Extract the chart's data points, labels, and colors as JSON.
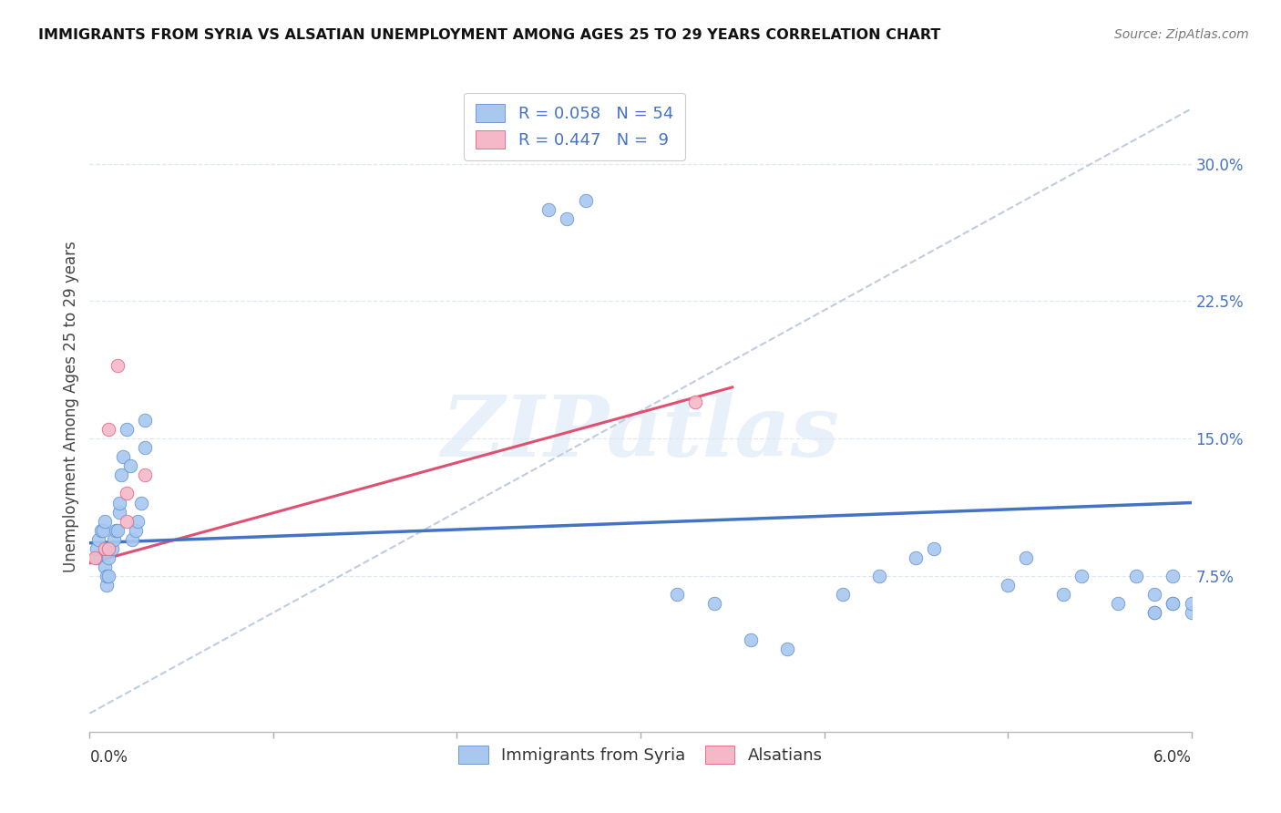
{
  "title": "IMMIGRANTS FROM SYRIA VS ALSATIAN UNEMPLOYMENT AMONG AGES 25 TO 29 YEARS CORRELATION CHART",
  "source": "Source: ZipAtlas.com",
  "ylabel": "Unemployment Among Ages 25 to 29 years",
  "right_yticks": [
    0.075,
    0.15,
    0.225,
    0.3
  ],
  "right_yticklabels": [
    "7.5%",
    "15.0%",
    "22.5%",
    "30.0%"
  ],
  "xlim": [
    0.0,
    0.06
  ],
  "ylim": [
    -0.01,
    0.345
  ],
  "legend_label1": "Immigrants from Syria",
  "legend_label2": "Alsatians",
  "scatter_blue_x": [
    0.0004,
    0.0004,
    0.0005,
    0.0006,
    0.0007,
    0.0008,
    0.0008,
    0.0009,
    0.0009,
    0.001,
    0.001,
    0.001,
    0.0012,
    0.0013,
    0.0014,
    0.0015,
    0.0016,
    0.0016,
    0.0017,
    0.0018,
    0.002,
    0.0022,
    0.0023,
    0.0025,
    0.0026,
    0.0028,
    0.003,
    0.003,
    0.025,
    0.026,
    0.027,
    0.032,
    0.034,
    0.036,
    0.038,
    0.041,
    0.043,
    0.045,
    0.046,
    0.05,
    0.051,
    0.053,
    0.054,
    0.056,
    0.057,
    0.058,
    0.059,
    0.058,
    0.059,
    0.06,
    0.06,
    0.058,
    0.059
  ],
  "scatter_blue_y": [
    0.085,
    0.09,
    0.095,
    0.1,
    0.1,
    0.105,
    0.08,
    0.07,
    0.075,
    0.09,
    0.085,
    0.075,
    0.09,
    0.095,
    0.1,
    0.1,
    0.11,
    0.115,
    0.13,
    0.14,
    0.155,
    0.135,
    0.095,
    0.1,
    0.105,
    0.115,
    0.145,
    0.16,
    0.275,
    0.27,
    0.28,
    0.065,
    0.06,
    0.04,
    0.035,
    0.065,
    0.075,
    0.085,
    0.09,
    0.07,
    0.085,
    0.065,
    0.075,
    0.06,
    0.075,
    0.055,
    0.06,
    0.065,
    0.075,
    0.055,
    0.06,
    0.055,
    0.06
  ],
  "scatter_pink_x": [
    0.0003,
    0.0008,
    0.001,
    0.001,
    0.0015,
    0.002,
    0.002,
    0.003,
    0.033
  ],
  "scatter_pink_y": [
    0.085,
    0.09,
    0.09,
    0.155,
    0.19,
    0.105,
    0.12,
    0.13,
    0.17
  ],
  "blue_line_x": [
    0.0,
    0.06
  ],
  "blue_line_y": [
    0.093,
    0.115
  ],
  "pink_line_x": [
    0.0,
    0.035
  ],
  "pink_line_y": [
    0.082,
    0.178
  ],
  "diag_line_x": [
    0.0,
    0.06
  ],
  "diag_line_y": [
    0.0,
    0.33
  ],
  "blue_scatter_color": "#a8c8f0",
  "pink_scatter_color": "#f4b8c8",
  "blue_edge_color": "#6090d0",
  "pink_edge_color": "#e06080",
  "blue_line_color": "#4472c4",
  "pink_line_color": "#e05070",
  "diag_line_color": "#c0cce0",
  "watermark": "ZIPatlas",
  "marker_size": 110,
  "background_color": "#ffffff",
  "grid_color": "#e0e8f0",
  "title_fontsize": 11.5,
  "source_fontsize": 10,
  "axis_label_fontsize": 12,
  "tick_label_fontsize": 12,
  "legend_fontsize": 13
}
